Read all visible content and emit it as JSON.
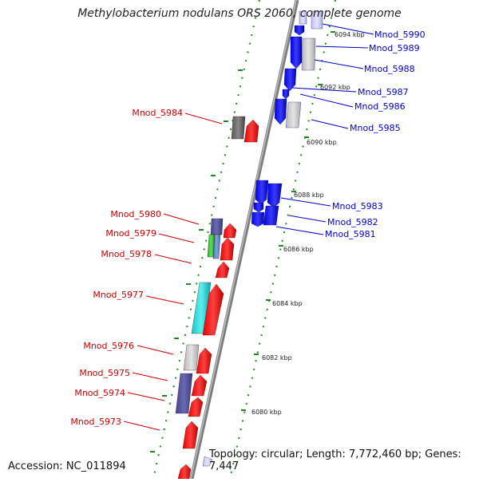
{
  "title": "Methylobacterium nodulans ORS 2060, complete genome",
  "footer": {
    "accession": "Accession: NC_011894",
    "topology": "Topology: circular; Length: 7,772,460 bp; Genes: 7,447"
  },
  "colors": {
    "reverse_label": "#cc0000",
    "forward_label": "#0000cc",
    "backbone": "#8a8a8a",
    "tick": "#1f8c1f"
  },
  "ruler": {
    "kbp_labels": [
      "6094 kbp",
      "6092 kbp",
      "6090 kbp",
      "6088 kbp",
      "6086 kbp",
      "6084 kbp",
      "6082 kbp",
      "6080 kbp"
    ]
  },
  "genes_forward_strand": [
    "Mnod_5990",
    "Mnod_5989",
    "Mnod_5988",
    "Mnod_5987",
    "Mnod_5986",
    "Mnod_5985",
    "Mnod_5983",
    "Mnod_5982",
    "Mnod_5981"
  ],
  "genes_reverse_strand": [
    "Mnod_5984",
    "Mnod_5980",
    "Mnod_5979",
    "Mnod_5978",
    "Mnod_5977",
    "Mnod_5976",
    "Mnod_5975",
    "Mnod_5974",
    "Mnod_5973"
  ]
}
